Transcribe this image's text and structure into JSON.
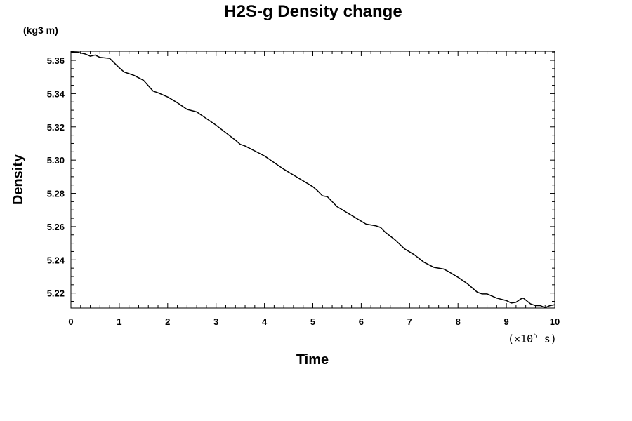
{
  "chart_data": {
    "type": "line",
    "title": "H2S-g Density change",
    "xlabel": "Time",
    "ylabel": "Density",
    "y_unit": "(kg3 m)",
    "x_scale_prefix": "(×10",
    "x_scale_exp": "5",
    "x_scale_suffix": " s)",
    "xlim": [
      0,
      10
    ],
    "ylim": [
      5.211,
      5.3655
    ],
    "x_ticks": [
      0,
      1,
      2,
      3,
      4,
      5,
      6,
      7,
      8,
      9,
      10
    ],
    "x_tick_labels": [
      "0",
      "1",
      "2",
      "3",
      "4",
      "5",
      "6",
      "7",
      "8",
      "9",
      "10"
    ],
    "y_ticks": [
      5.22,
      5.24,
      5.26,
      5.28,
      5.3,
      5.32,
      5.34,
      5.36
    ],
    "y_tick_labels": [
      "5.22",
      "5.24",
      "5.26",
      "5.28",
      "5.30",
      "5.32",
      "5.34",
      "5.36"
    ],
    "grid": false,
    "series": [
      {
        "x": [
          0.0,
          0.15,
          0.3,
          0.4,
          0.5,
          0.6,
          0.8,
          1.0,
          1.1,
          1.3,
          1.5,
          1.7,
          1.8,
          2.0,
          2.2,
          2.4,
          2.6,
          2.8,
          3.0,
          3.2,
          3.4,
          3.5,
          3.6,
          3.8,
          4.0,
          4.2,
          4.4,
          4.6,
          4.8,
          5.0,
          5.1,
          5.2,
          5.3,
          5.5,
          5.7,
          5.9,
          6.1,
          6.3,
          6.4,
          6.5,
          6.7,
          6.9,
          7.1,
          7.3,
          7.5,
          7.7,
          7.8,
          8.0,
          8.2,
          8.4,
          8.5,
          8.6,
          8.8,
          9.0,
          9.1,
          9.2,
          9.3,
          9.35,
          9.5,
          9.6,
          9.7,
          9.8,
          9.9,
          10.0
        ],
        "y": [
          5.365,
          5.3648,
          5.3638,
          5.3625,
          5.3632,
          5.3618,
          5.3612,
          5.3555,
          5.353,
          5.351,
          5.348,
          5.3415,
          5.3405,
          5.338,
          5.3345,
          5.3305,
          5.329,
          5.325,
          5.321,
          5.3165,
          5.312,
          5.3095,
          5.3085,
          5.3055,
          5.3025,
          5.2985,
          5.2945,
          5.291,
          5.2875,
          5.284,
          5.2815,
          5.2785,
          5.278,
          5.272,
          5.2685,
          5.265,
          5.2615,
          5.2605,
          5.2595,
          5.2565,
          5.252,
          5.2465,
          5.243,
          5.2385,
          5.2355,
          5.2345,
          5.233,
          5.2295,
          5.2255,
          5.2205,
          5.2195,
          5.2195,
          5.217,
          5.2155,
          5.214,
          5.2145,
          5.2165,
          5.217,
          5.2135,
          5.2125,
          5.2125,
          5.2112,
          5.2125,
          5.213
        ]
      }
    ]
  }
}
